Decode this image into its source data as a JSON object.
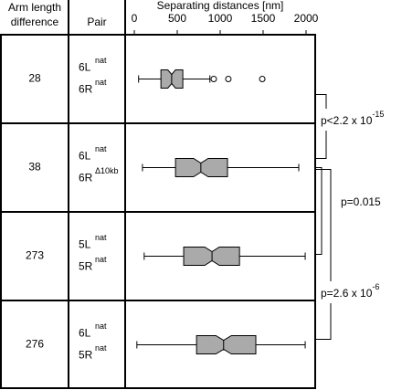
{
  "table": {
    "headers": {
      "difference": [
        "Arm length",
        "difference"
      ],
      "pair": "Pair"
    },
    "rows": [
      {
        "difference": 28,
        "pair": [
          {
            "base": "6L",
            "sup": "nat"
          },
          {
            "base": "6R",
            "sup": "nat"
          }
        ]
      },
      {
        "difference": 38,
        "pair": [
          {
            "base": "6L",
            "sup": "nat"
          },
          {
            "base": "6R",
            "sup": "Δ10kb"
          }
        ]
      },
      {
        "difference": 273,
        "pair": [
          {
            "base": "5L",
            "sup": "nat"
          },
          {
            "base": "5R",
            "sup": "nat"
          }
        ]
      },
      {
        "difference": 276,
        "pair": [
          {
            "base": "6L",
            "sup": "nat"
          },
          {
            "base": "5R",
            "sup": "nat"
          }
        ]
      }
    ]
  },
  "chart_data": {
    "type": "box",
    "xlabel": "Separating distances [nm]",
    "xlim": [
      0,
      2000
    ],
    "xticks": [
      0,
      500,
      1000,
      1500,
      2000
    ],
    "color": "#aaaaaa",
    "boxes": [
      {
        "whislo": 50,
        "q1": 310,
        "med": 435,
        "q3": 565,
        "whishi": 880,
        "notch": [
          390,
          480
        ],
        "fliers": [
          925,
          1095,
          1490
        ]
      },
      {
        "whislo": 95,
        "q1": 480,
        "med": 775,
        "q3": 1085,
        "whishi": 1915,
        "notch": [
          690,
          860
        ],
        "fliers": []
      },
      {
        "whislo": 115,
        "q1": 575,
        "med": 905,
        "q3": 1225,
        "whishi": 1990,
        "notch": [
          820,
          990
        ],
        "fliers": []
      },
      {
        "whislo": 30,
        "q1": 725,
        "med": 1040,
        "q3": 1415,
        "whishi": 1990,
        "notch": [
          950,
          1130
        ],
        "fliers": []
      }
    ],
    "comparisons": [
      {
        "rows": [
          0,
          1
        ],
        "label": "p<2.2 x 10",
        "exponent": "-15"
      },
      {
        "rows": [
          1,
          2
        ],
        "label": "p=0.015"
      },
      {
        "rows": [
          1,
          3
        ],
        "label": "p=2.6 x 10",
        "exponent": "-6"
      }
    ]
  }
}
